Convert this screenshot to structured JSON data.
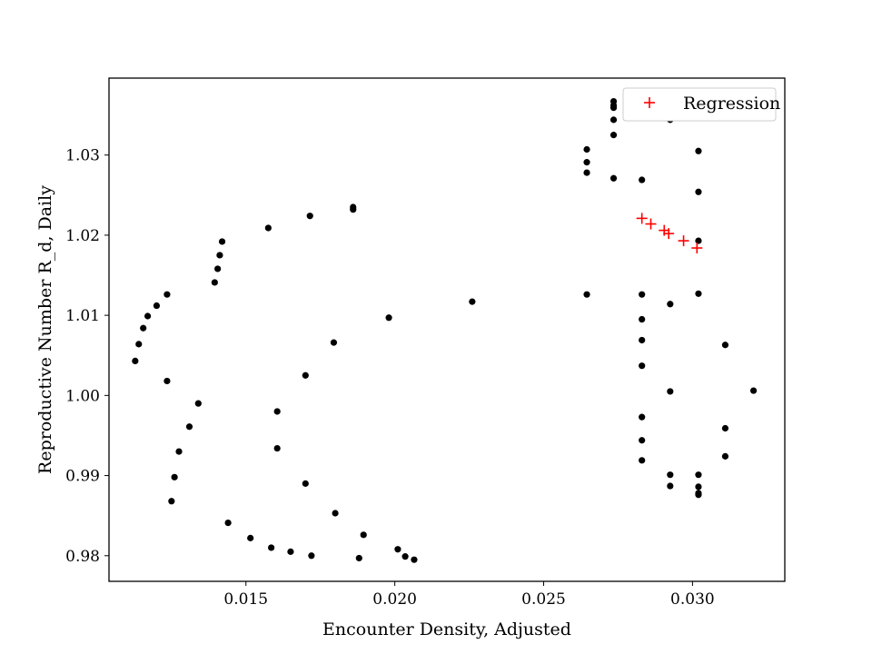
{
  "chart_data": {
    "type": "scatter",
    "title": "",
    "xlabel": "Encounter Density, Adjusted",
    "ylabel": "Reproductive Number R_d, Daily",
    "xlim": [
      0.0104,
      0.0331
    ],
    "ylim": [
      0.9768,
      1.0396
    ],
    "x_ticks": [
      0.015,
      0.02,
      0.025,
      0.03
    ],
    "x_tick_labels": [
      "0.015",
      "0.020",
      "0.025",
      "0.030"
    ],
    "y_ticks": [
      0.98,
      0.99,
      1.0,
      1.01,
      1.02,
      1.03
    ],
    "y_tick_labels": [
      "0.98",
      "0.99",
      "1.00",
      "1.01",
      "1.02",
      "1.03"
    ],
    "grid": false,
    "legend_position": "top-right",
    "colors": {
      "data": "#000000",
      "regression": "#ff0000",
      "frame": "#000000"
    },
    "series": [
      {
        "marker": "dot",
        "points": [
          [
            0.01128,
            1.0043
          ],
          [
            0.0114,
            1.0064
          ],
          [
            0.01155,
            1.0084
          ],
          [
            0.0117,
            1.0099
          ],
          [
            0.012,
            1.0112
          ],
          [
            0.01235,
            1.0126
          ],
          [
            0.01235,
            1.0018
          ],
          [
            0.0125,
            0.9868
          ],
          [
            0.0126,
            0.9898
          ],
          [
            0.01275,
            0.993
          ],
          [
            0.0131,
            0.9961
          ],
          [
            0.0134,
            0.999
          ],
          [
            0.01395,
            1.0141
          ],
          [
            0.01405,
            1.0158
          ],
          [
            0.01412,
            1.0175
          ],
          [
            0.0142,
            1.0192
          ],
          [
            0.0144,
            0.9841
          ],
          [
            0.01515,
            0.9822
          ],
          [
            0.01575,
            1.0209
          ],
          [
            0.01585,
            0.981
          ],
          [
            0.01605,
            0.998
          ],
          [
            0.01605,
            0.9934
          ],
          [
            0.0165,
            0.9805
          ],
          [
            0.017,
            1.0025
          ],
          [
            0.017,
            0.989
          ],
          [
            0.01715,
            1.0224
          ],
          [
            0.0172,
            0.98
          ],
          [
            0.01795,
            1.0066
          ],
          [
            0.018,
            0.9853
          ],
          [
            0.0186,
            1.0235
          ],
          [
            0.0186,
            1.0232
          ],
          [
            0.0188,
            0.9797
          ],
          [
            0.01895,
            0.9826
          ],
          [
            0.0198,
            1.0097
          ],
          [
            0.0201,
            0.9808
          ],
          [
            0.02035,
            0.9799
          ],
          [
            0.02065,
            0.9795
          ],
          [
            0.0226,
            1.0117
          ],
          [
            0.02645,
            1.0307
          ],
          [
            0.02645,
            1.0291
          ],
          [
            0.02645,
            1.0278
          ],
          [
            0.02645,
            1.0126
          ],
          [
            0.02735,
            1.0367
          ],
          [
            0.02735,
            1.0362
          ],
          [
            0.02735,
            1.0359
          ],
          [
            0.02735,
            1.0344
          ],
          [
            0.02735,
            1.0325
          ],
          [
            0.02735,
            1.0271
          ],
          [
            0.0283,
            1.0269
          ],
          [
            0.0283,
            1.0126
          ],
          [
            0.0283,
            1.0095
          ],
          [
            0.0283,
            1.0069
          ],
          [
            0.0283,
            1.0037
          ],
          [
            0.0283,
            0.9973
          ],
          [
            0.0283,
            0.9944
          ],
          [
            0.0283,
            0.9919
          ],
          [
            0.02925,
            1.0344
          ],
          [
            0.02925,
            1.0114
          ],
          [
            0.02925,
            1.0005
          ],
          [
            0.02925,
            0.9901
          ],
          [
            0.02925,
            0.9887
          ],
          [
            0.0302,
            1.0305
          ],
          [
            0.0302,
            1.0254
          ],
          [
            0.0302,
            1.0193
          ],
          [
            0.0302,
            1.0127
          ],
          [
            0.0302,
            0.9901
          ],
          [
            0.0302,
            0.9886
          ],
          [
            0.0302,
            0.9878
          ],
          [
            0.0302,
            0.9876
          ],
          [
            0.0311,
            1.0063
          ],
          [
            0.0311,
            0.9959
          ],
          [
            0.0311,
            0.9924
          ],
          [
            0.03205,
            1.0006
          ]
        ]
      },
      {
        "name": "Regression",
        "marker": "plus",
        "points": [
          [
            0.0283,
            1.0221
          ],
          [
            0.0286,
            1.0214
          ],
          [
            0.02905,
            1.0206
          ],
          [
            0.0292,
            1.0202
          ],
          [
            0.0297,
            1.0193
          ],
          [
            0.03015,
            1.0184
          ]
        ]
      }
    ]
  }
}
